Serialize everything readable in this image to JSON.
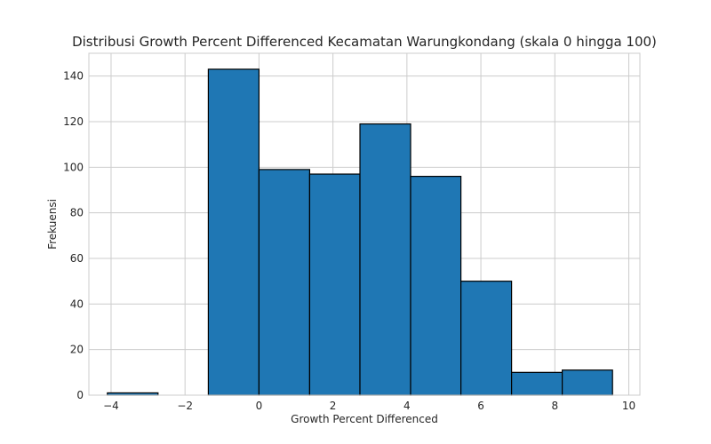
{
  "chart_data": {
    "type": "bar",
    "title": "Distribusi Growth Percent Differenced Kecamatan Warungkondang (skala 0 hingga 100)",
    "xlabel": "Growth Percent Differenced",
    "ylabel": "Frekuensi",
    "bin_edges": [
      -4.1,
      -2.73,
      -1.37,
      0.0,
      1.37,
      2.73,
      4.1,
      5.46,
      6.83,
      8.2,
      9.56
    ],
    "bins": [
      {
        "x0": -4.1,
        "x1": -2.73,
        "count": 1
      },
      {
        "x0": -2.73,
        "x1": -1.37,
        "count": 0
      },
      {
        "x0": -1.37,
        "x1": 0.0,
        "count": 143
      },
      {
        "x0": 0.0,
        "x1": 1.37,
        "count": 99
      },
      {
        "x0": 1.37,
        "x1": 2.73,
        "count": 97
      },
      {
        "x0": 2.73,
        "x1": 4.1,
        "count": 119
      },
      {
        "x0": 4.1,
        "x1": 5.46,
        "count": 96
      },
      {
        "x0": 5.46,
        "x1": 6.83,
        "count": 50
      },
      {
        "x0": 6.83,
        "x1": 8.2,
        "count": 10
      },
      {
        "x0": 8.2,
        "x1": 9.56,
        "count": 11
      }
    ],
    "xlim": [
      -4.6,
      10.3
    ],
    "ylim": [
      0,
      150
    ],
    "xticks": [
      -4,
      -2,
      0,
      2,
      4,
      6,
      8,
      10
    ],
    "xtick_labels": [
      "−4",
      "−2",
      "0",
      "2",
      "4",
      "6",
      "8",
      "10"
    ],
    "yticks": [
      0,
      20,
      40,
      60,
      80,
      100,
      120,
      140
    ],
    "ytick_labels": [
      "0",
      "20",
      "40",
      "60",
      "80",
      "100",
      "120",
      "140"
    ],
    "grid": true,
    "bar_color": "#1f77b4",
    "edge_color": "#000000"
  }
}
